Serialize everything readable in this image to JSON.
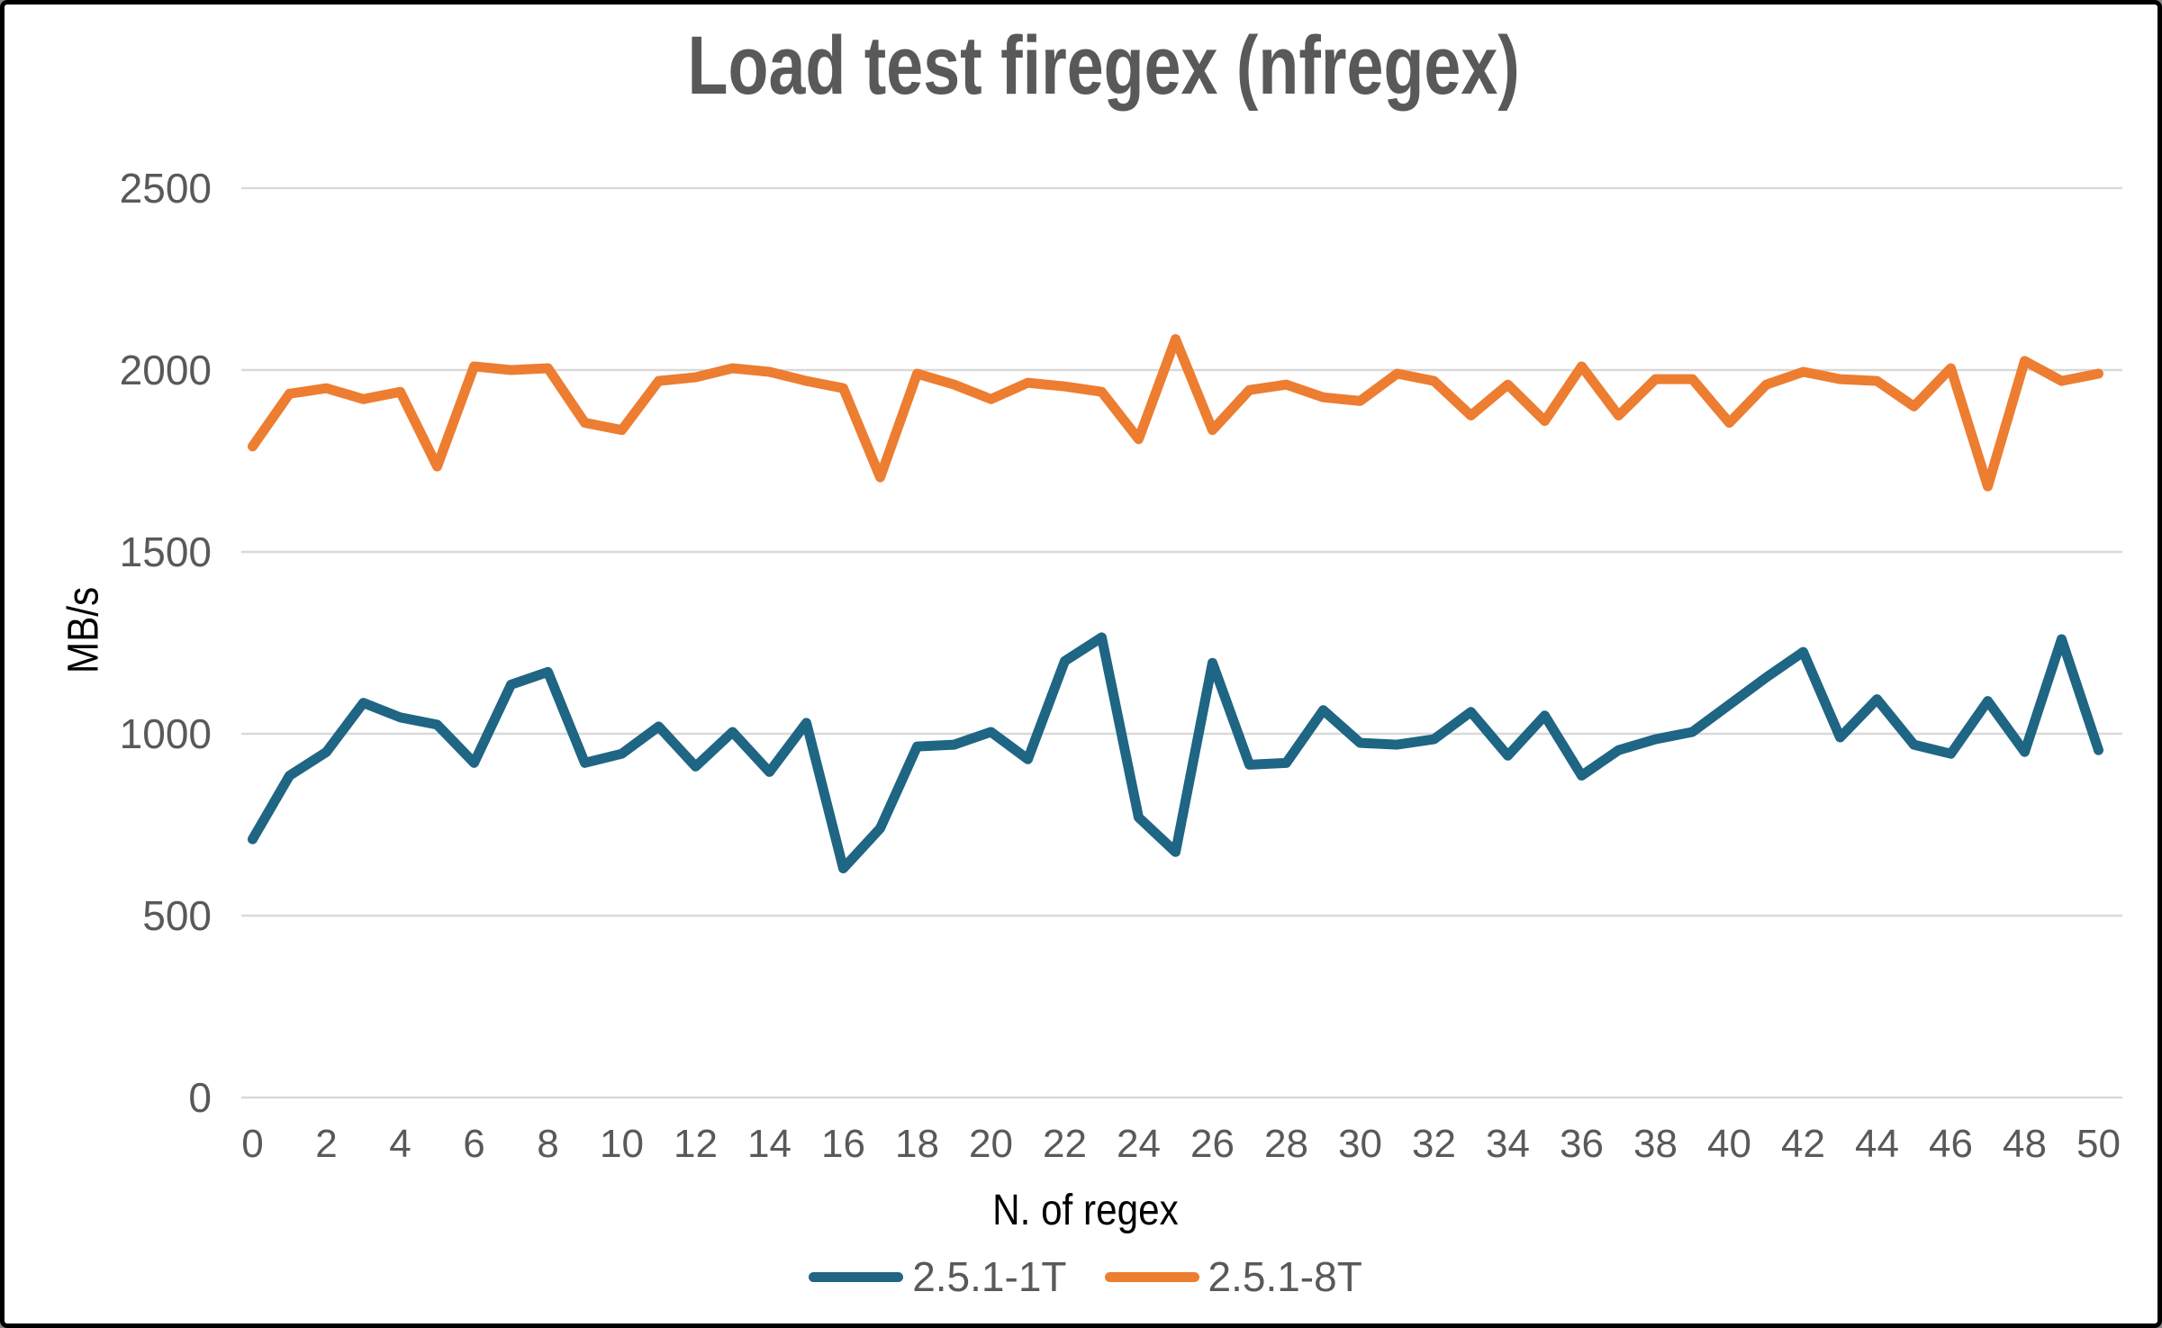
{
  "frame": {
    "background": "#ffffff",
    "border_color": "#000000"
  },
  "colors": {
    "title_text": "#595959",
    "tick_text": "#595959",
    "axis_title_text": "#000000",
    "legend_text": "#595959",
    "gridline": "#d9d9d9",
    "series_1t": "#1f6584",
    "series_8t": "#ed7d31"
  },
  "chart_data": {
    "type": "line",
    "title": "Load test firegex (nfregex)",
    "xlabel": "N. of regex",
    "ylabel": "MB/s",
    "x": [
      0,
      1,
      2,
      3,
      4,
      5,
      6,
      7,
      8,
      9,
      10,
      11,
      12,
      13,
      14,
      15,
      16,
      17,
      18,
      19,
      20,
      21,
      22,
      23,
      24,
      25,
      26,
      27,
      28,
      29,
      30,
      31,
      32,
      33,
      34,
      35,
      36,
      37,
      38,
      39,
      40,
      41,
      42,
      43,
      44,
      45,
      46,
      47,
      48,
      49,
      50
    ],
    "ylim": [
      0,
      2500
    ],
    "ytick_step": 500,
    "yticks": [
      0,
      500,
      1000,
      1500,
      2000,
      2500
    ],
    "xtick_step": 2,
    "xticks": [
      0,
      2,
      4,
      6,
      8,
      10,
      12,
      14,
      16,
      18,
      20,
      22,
      24,
      26,
      28,
      30,
      32,
      34,
      36,
      38,
      40,
      42,
      44,
      46,
      48,
      50
    ],
    "grid": true,
    "legend_position": "bottom",
    "series": [
      {
        "name": "2.5.1-1T",
        "color": "#1f6584",
        "values": [
          710,
          885,
          950,
          1085,
          1045,
          1025,
          920,
          1135,
          1170,
          920,
          945,
          1020,
          910,
          1005,
          895,
          1030,
          630,
          740,
          965,
          970,
          1005,
          930,
          1200,
          1265,
          770,
          675,
          1195,
          915,
          920,
          1065,
          975,
          970,
          985,
          1060,
          940,
          1050,
          885,
          955,
          985,
          1005,
          1080,
          1155,
          1225,
          990,
          1095,
          970,
          945,
          1090,
          950,
          1260,
          955
        ]
      },
      {
        "name": "2.5.1-8T",
        "color": "#ed7d31",
        "values": [
          1790,
          1935,
          1950,
          1920,
          1940,
          1735,
          2010,
          2000,
          2005,
          1855,
          1835,
          1970,
          1980,
          2005,
          1995,
          1970,
          1950,
          1705,
          1990,
          1960,
          1920,
          1965,
          1955,
          1940,
          1810,
          2085,
          1835,
          1945,
          1960,
          1925,
          1915,
          1990,
          1970,
          1875,
          1960,
          1860,
          2010,
          1875,
          1975,
          1975,
          1855,
          1960,
          1995,
          1975,
          1970,
          1900,
          2005,
          1680,
          2025,
          1970,
          1990
        ]
      }
    ]
  }
}
